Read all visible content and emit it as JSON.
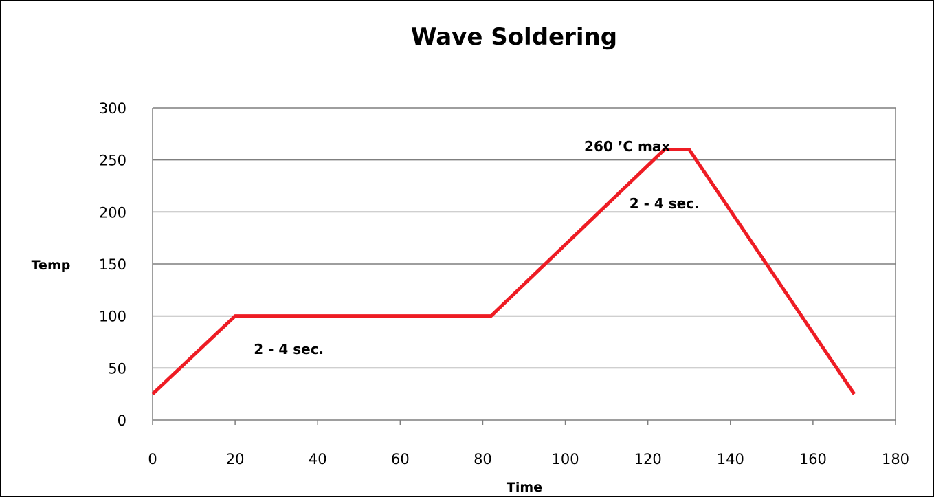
{
  "chart_data": {
    "type": "line",
    "title": "Wave Soldering",
    "xlabel": "Time",
    "ylabel": "Temp",
    "xlim": [
      0,
      180
    ],
    "ylim": [
      0,
      300
    ],
    "x_ticks": [
      "0",
      "20",
      "40",
      "60",
      "80",
      "100",
      "120",
      "140",
      "160",
      "180"
    ],
    "y_ticks": [
      "0",
      "50",
      "100",
      "150",
      "200",
      "250",
      "300"
    ],
    "grid": "horizontal",
    "legend": "none",
    "series": [
      {
        "color": "#ee1c24",
        "points": [
          {
            "x": 0,
            "y": 25
          },
          {
            "x": 20,
            "y": 100
          },
          {
            "x": 82,
            "y": 100
          },
          {
            "x": 124,
            "y": 260
          },
          {
            "x": 130,
            "y": 260
          },
          {
            "x": 170,
            "y": 25
          }
        ]
      }
    ],
    "annotations": [
      {
        "text": "260 ’C max",
        "x": 115,
        "y": 263
      },
      {
        "text": "2 - 4 sec.",
        "x": 33,
        "y": 68
      },
      {
        "text": "2 - 4 sec.",
        "x": 124,
        "y": 208
      }
    ]
  }
}
